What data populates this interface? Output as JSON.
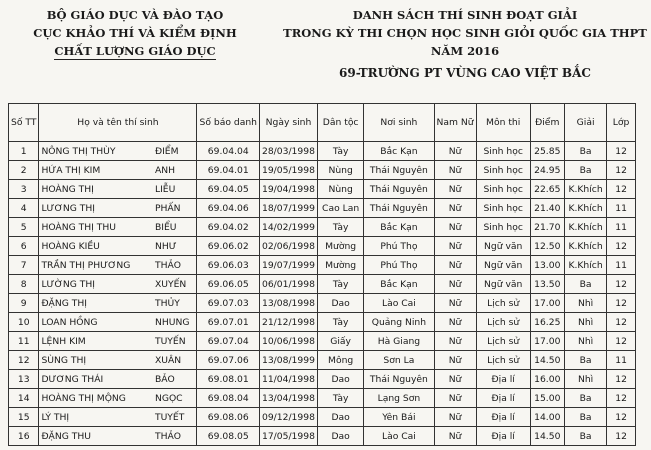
{
  "header_left": [
    "BỘ GIÁO DỤC VÀ ĐÀO TẠO",
    "CỤC KHẢO THÍ VÀ KIỂM ĐỊNH",
    "CHẤT LƯỢNG GIÁO DỤC"
  ],
  "header_right": [
    "DANH SÁCH THÍ SINH ĐOẠT GIẢI",
    "TRONG KỲ THI CHỌN HỌC SINH GIỎI QUỐC GIA  THPT",
    "NĂM 2016",
    "69-TRƯỜNG PT VÙNG CAO VIỆT BẮC"
  ],
  "columns": [
    "Số TT",
    "Họ và tên thí sinh",
    "Số báo danh",
    "Ngày sinh",
    "Dân tộc",
    "Nơi sinh",
    "Nam Nữ",
    "Môn thi",
    "Điểm",
    "Giải",
    "Lớp"
  ],
  "rows": [
    [
      "1",
      "NÔNG THỊ THÙY",
      "ĐIỂM",
      "69.04.04",
      "28/03/1998",
      "Tày",
      "Bắc Kạn",
      "Nữ",
      "Sinh học",
      "25.85",
      "Ba",
      "12"
    ],
    [
      "2",
      "HỨA THỊ KIM",
      "ANH",
      "69.04.01",
      "19/05/1998",
      "Nùng",
      "Thái Nguyên",
      "Nữ",
      "Sinh học",
      "24.95",
      "Ba",
      "12"
    ],
    [
      "3",
      "HOÀNG THỊ",
      "LIỄU",
      "69.04.05",
      "19/04/1998",
      "Nùng",
      "Thái Nguyên",
      "Nữ",
      "Sinh học",
      "22.65",
      "K.Khích",
      "12"
    ],
    [
      "4",
      "LƯƠNG THỊ",
      "PHẤN",
      "69.04.06",
      "18/07/1999",
      "Cao Lan",
      "Thái Nguyên",
      "Nữ",
      "Sinh học",
      "21.40",
      "K.Khích",
      "11"
    ],
    [
      "5",
      "HOÀNG THỊ THU",
      "BIỂU",
      "69.04.02",
      "14/02/1999",
      "Tày",
      "Bắc Kạn",
      "Nữ",
      "Sinh học",
      "21.70",
      "K.Khích",
      "11"
    ],
    [
      "6",
      "HOÀNG KIỀU",
      "NHƯ",
      "69.06.02",
      "02/06/1998",
      "Mường",
      "Phú Thọ",
      "Nữ",
      "Ngữ văn",
      "12.50",
      "K.Khích",
      "12"
    ],
    [
      "7",
      "TRẦN THỊ PHƯƠNG",
      "THẢO",
      "69.06.03",
      "19/07/1999",
      "Mường",
      "Phú Thọ",
      "Nữ",
      "Ngữ văn",
      "13.00",
      "K.Khích",
      "11"
    ],
    [
      "8",
      "LƯỜNG THỊ",
      "XUYẾN",
      "69.06.05",
      "06/01/1998",
      "Tày",
      "Bắc Kạn",
      "Nữ",
      "Ngữ văn",
      "13.50",
      "Ba",
      "12"
    ],
    [
      "9",
      "ĐẶNG THỊ",
      "THỦY",
      "69.07.03",
      "13/08/1998",
      "Dao",
      "Lào Cai",
      "Nữ",
      "Lịch sử",
      "17.00",
      "Nhì",
      "12"
    ],
    [
      "10",
      "LOAN HỒNG",
      "NHUNG",
      "69.07.01",
      "21/12/1998",
      "Tày",
      "Quảng Ninh",
      "Nữ",
      "Lịch sử",
      "16.25",
      "Nhì",
      "12"
    ],
    [
      "11",
      "LỆNH KIM",
      "TUYẾN",
      "69.07.04",
      "10/06/1998",
      "Giấy",
      "Hà Giang",
      "Nữ",
      "Lịch sử",
      "17.00",
      "Nhì",
      "12"
    ],
    [
      "12",
      "SÙNG THỊ",
      "XUÂN",
      "69.07.06",
      "13/08/1999",
      "Mông",
      "Sơn La",
      "Nữ",
      "Lịch sử",
      "14.50",
      "Ba",
      "11"
    ],
    [
      "13",
      "DƯƠNG THÁI",
      "BẢO",
      "69.08.01",
      "11/04/1998",
      "Dao",
      "Thái Nguyên",
      "Nữ",
      "Địa lí",
      "16.00",
      "Nhì",
      "12"
    ],
    [
      "14",
      "HOÀNG THỊ MỘNG",
      "NGỌC",
      "69.08.04",
      "13/04/1998",
      "Tày",
      "Lạng Sơn",
      "Nữ",
      "Địa lí",
      "15.00",
      "Ba",
      "12"
    ],
    [
      "15",
      "LÝ THỊ",
      "TUYẾT",
      "69.08.06",
      "09/12/1998",
      "Dao",
      "Yên Bái",
      "Nữ",
      "Địa lí",
      "14.00",
      "Ba",
      "12"
    ],
    [
      "16",
      "ĐẶNG THU",
      "THẢO",
      "69.08.05",
      "17/05/1998",
      "Dao",
      "Lào Cai",
      "Nữ",
      "Địa lí",
      "14.50",
      "Ba",
      "12"
    ]
  ]
}
